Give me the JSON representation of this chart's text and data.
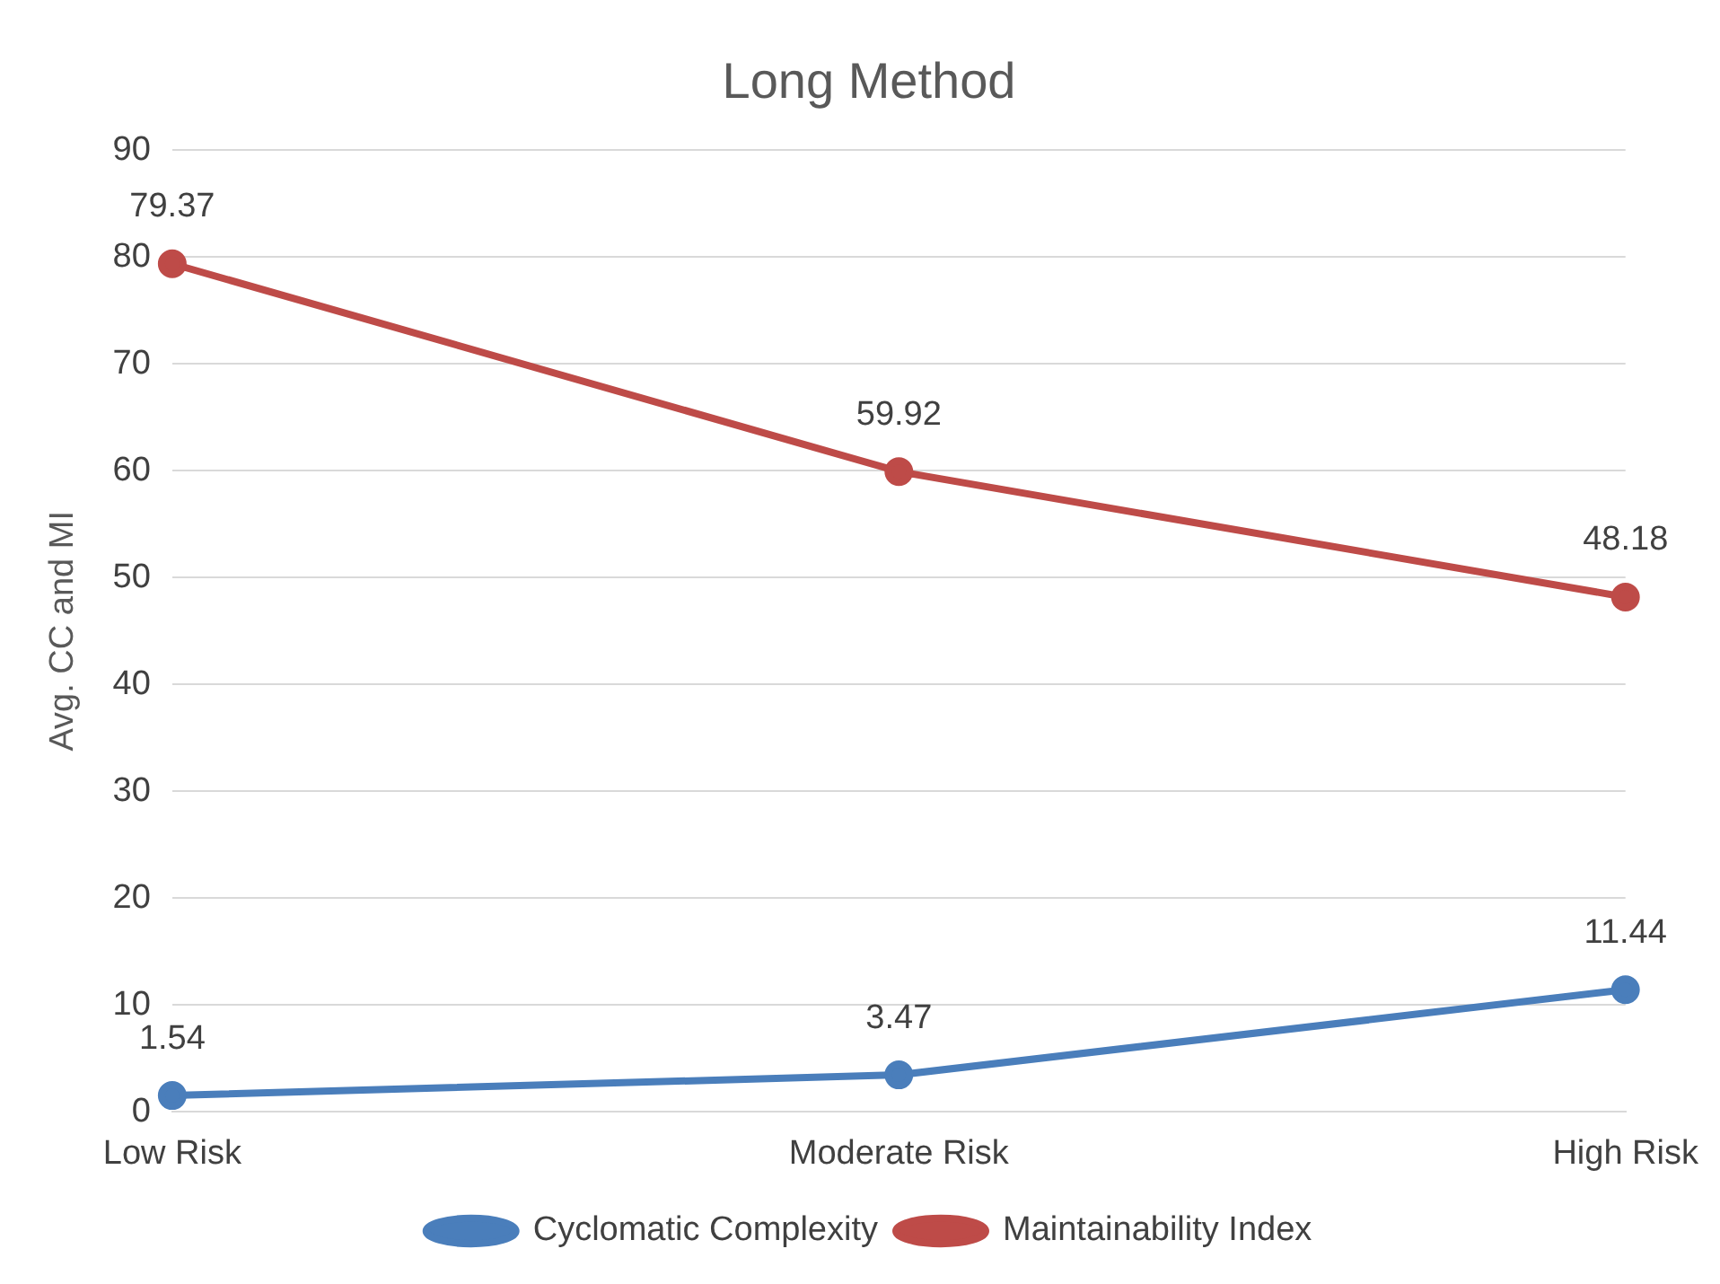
{
  "chart_data": {
    "type": "line",
    "title": "Long Method",
    "ylabel": "Avg. CC and MI",
    "categories": [
      "Low Risk",
      "Moderate Risk",
      "High Risk"
    ],
    "series": [
      {
        "name": "Cyclomatic Complexity",
        "color": "#4a7ebb",
        "values": [
          1.54,
          3.47,
          11.44
        ]
      },
      {
        "name": "Maintainability Index",
        "color": "#be4b48",
        "values": [
          79.37,
          59.92,
          48.18
        ]
      }
    ],
    "ylim": [
      0,
      90
    ],
    "yticks": [
      0,
      10,
      20,
      30,
      40,
      50,
      60,
      70,
      80,
      90
    ],
    "grid": "y",
    "legend": "bottom",
    "marker": "circle",
    "line_style": "solid",
    "data_labels": true
  }
}
